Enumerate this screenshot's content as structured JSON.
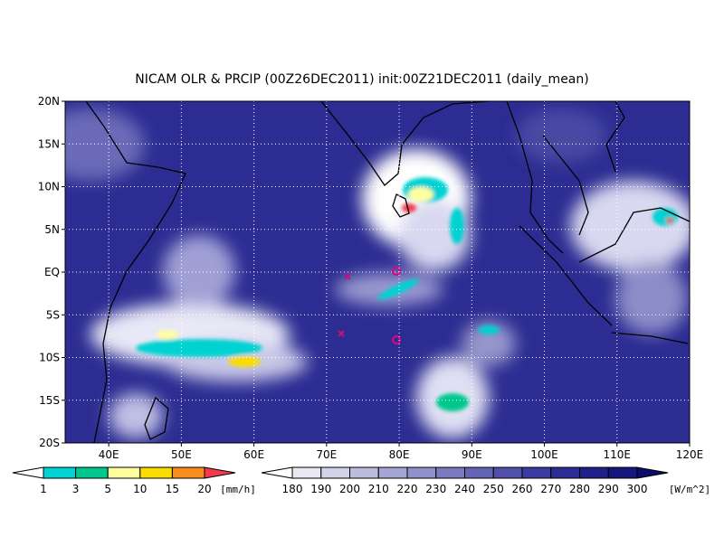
{
  "map": {
    "title": "NICAM OLR & PRCIP (00Z26DEC2011) init:00Z21DEC2011 (daily_mean)",
    "lonlim": [
      34,
      120
    ],
    "latlim": [
      -20,
      20
    ],
    "lat_ticks": [
      {
        "value": 20,
        "label": "20N"
      },
      {
        "value": 15,
        "label": "15N"
      },
      {
        "value": 10,
        "label": "10N"
      },
      {
        "value": 5,
        "label": "5N"
      },
      {
        "value": 0,
        "label": "EQ"
      },
      {
        "value": -5,
        "label": "5S"
      },
      {
        "value": -10,
        "label": "10S"
      },
      {
        "value": -15,
        "label": "15S"
      },
      {
        "value": -20,
        "label": "20S"
      }
    ],
    "lon_ticks": [
      {
        "value": 40,
        "label": "40E"
      },
      {
        "value": 50,
        "label": "50E"
      },
      {
        "value": 60,
        "label": "60E"
      },
      {
        "value": 70,
        "label": "70E"
      },
      {
        "value": 80,
        "label": "80E"
      },
      {
        "value": 90,
        "label": "90E"
      },
      {
        "value": 100,
        "label": "100E"
      },
      {
        "value": 110,
        "label": "110E"
      },
      {
        "value": 120,
        "label": "120E"
      }
    ],
    "grid": true
  },
  "precip_colorbar": {
    "levels": [
      1,
      3,
      5,
      10,
      15,
      20
    ],
    "unit": "[mm/h]",
    "colors": [
      "#ffffff",
      "#00d2d2",
      "#00c88c",
      "#ffffa0",
      "#fadc00",
      "#fa8c1e",
      "#f03c50"
    ]
  },
  "olr_colorbar": {
    "levels": [
      180,
      190,
      200,
      210,
      220,
      230,
      240,
      250,
      260,
      270,
      280,
      290,
      300
    ],
    "unit": "[W/m^2]",
    "colors": [
      "#ffffff",
      "#e8e8f2",
      "#d2d2e8",
      "#bcbcde",
      "#a6a6d4",
      "#9090ca",
      "#7a7ac0",
      "#6464b4",
      "#5050aa",
      "#3c3ca0",
      "#2c2c96",
      "#20208a",
      "#16167c",
      "#0c0c6a"
    ]
  }
}
